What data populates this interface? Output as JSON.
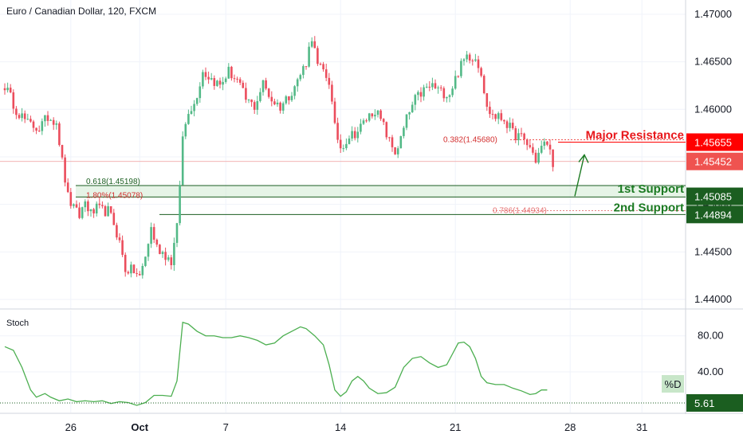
{
  "header": {
    "title": "Euro / Canadian Dollar, 120, FXCM"
  },
  "colors": {
    "up": "#26a69a",
    "down": "#ef5350",
    "up_fill": "#53b987",
    "down_fill": "#eb4d5c",
    "red_tag": "#ff0000",
    "green_tag": "#1b5e20",
    "stoch_line": "#4caf50"
  },
  "chart_data": [
    {
      "type": "candlestick",
      "title": "Euro / Canadian Dollar, 120, FXCM",
      "ylim": [
        1.439,
        1.4715
      ],
      "yticks": [
        "1.47000",
        "1.46500",
        "1.46000",
        "1.45500",
        "1.45000",
        "1.44500",
        "1.44000"
      ],
      "ytick_values": [
        1.47,
        1.465,
        1.46,
        1.455,
        1.45,
        1.445,
        1.44
      ],
      "xticks": [
        {
          "label": "26",
          "bar": 23
        },
        {
          "label": "Oct",
          "bar": 47,
          "bold": true
        },
        {
          "label": "7",
          "bar": 77
        },
        {
          "label": "14",
          "bar": 117
        },
        {
          "label": "21",
          "bar": 157
        },
        {
          "label": "28",
          "bar": 197
        },
        {
          "label": "31",
          "bar": 222
        }
      ],
      "xlim_bars": [
        0,
        225
      ],
      "anchors": [
        [
          0,
          1.4625
        ],
        [
          4,
          1.46
        ],
        [
          8,
          1.4585
        ],
        [
          12,
          1.458
        ],
        [
          15,
          1.4592
        ],
        [
          18,
          1.4588
        ],
        [
          20,
          1.4545
        ],
        [
          22,
          1.4508
        ],
        [
          24,
          1.4495
        ],
        [
          26,
          1.4488
        ],
        [
          28,
          1.4503
        ],
        [
          30,
          1.449
        ],
        [
          32,
          1.4495
        ],
        [
          34,
          1.4493
        ],
        [
          36,
          1.4493
        ],
        [
          38,
          1.448
        ],
        [
          40,
          1.446
        ],
        [
          42,
          1.4432
        ],
        [
          45,
          1.443
        ],
        [
          47,
          1.4423
        ],
        [
          49,
          1.4445
        ],
        [
          51,
          1.4475
        ],
        [
          53,
          1.4455
        ],
        [
          56,
          1.4447
        ],
        [
          58,
          1.444
        ],
        [
          60,
          1.4475
        ],
        [
          62,
          1.457
        ],
        [
          64,
          1.46
        ],
        [
          66,
          1.4605
        ],
        [
          69,
          1.464
        ],
        [
          72,
          1.4632
        ],
        [
          75,
          1.4625
        ],
        [
          78,
          1.464
        ],
        [
          81,
          1.463
        ],
        [
          84,
          1.461
        ],
        [
          87,
          1.4603
        ],
        [
          90,
          1.4627
        ],
        [
          93,
          1.461
        ],
        [
          96,
          1.4603
        ],
        [
          99,
          1.4615
        ],
        [
          102,
          1.463
        ],
        [
          105,
          1.465
        ],
        [
          107,
          1.4677
        ],
        [
          109,
          1.4645
        ],
        [
          111,
          1.464
        ],
        [
          113,
          1.463
        ],
        [
          115,
          1.458
        ],
        [
          117,
          1.456
        ],
        [
          120,
          1.4572
        ],
        [
          123,
          1.4577
        ],
        [
          126,
          1.459
        ],
        [
          129,
          1.46
        ],
        [
          132,
          1.4582
        ],
        [
          134,
          1.4566
        ],
        [
          136,
          1.4555
        ],
        [
          138,
          1.4568
        ],
        [
          140,
          1.459
        ],
        [
          143,
          1.461
        ],
        [
          146,
          1.462
        ],
        [
          149,
          1.4625
        ],
        [
          152,
          1.4618
        ],
        [
          155,
          1.4617
        ],
        [
          158,
          1.464
        ],
        [
          161,
          1.4657
        ],
        [
          164,
          1.4655
        ],
        [
          166,
          1.464
        ],
        [
          168,
          1.46
        ],
        [
          171,
          1.4592
        ],
        [
          174,
          1.459
        ],
        [
          177,
          1.4575
        ],
        [
          180,
          1.457
        ],
        [
          183,
          1.456
        ],
        [
          185,
          1.4547
        ],
        [
          187,
          1.456
        ],
        [
          189,
          1.4565
        ],
        [
          191,
          1.4545
        ]
      ],
      "levels": [
        {
          "label": "0.382(1.45680)",
          "value": 1.4568,
          "style": "fib-red"
        },
        {
          "label": "0.618(1.45198)",
          "value": 1.45198,
          "style": "fib-green"
        },
        {
          "label": "1.80%(1.45078)",
          "value": 1.45078,
          "style": "fib-red"
        },
        {
          "label": "0.786(1.44934)",
          "value": 1.44934,
          "style": "fib-pink"
        }
      ],
      "annotations": [
        {
          "text": "Major Resistance",
          "color": "red"
        },
        {
          "text": "1st Support",
          "color": "green"
        },
        {
          "text": "2nd Support",
          "color": "green"
        }
      ],
      "price_tags": [
        {
          "text": "1.45655",
          "value": 1.45655,
          "bg": "#ff0000"
        },
        {
          "text": "1.45452",
          "value": 1.45452,
          "bg": "#ef5350"
        },
        {
          "text": "1.45085",
          "value": 1.45085,
          "bg": "#1b5e20"
        },
        {
          "text": "1.44894",
          "value": 1.44894,
          "bg": "#1b5e20"
        }
      ]
    },
    {
      "type": "line",
      "title": "Stoch",
      "ylim": [
        -5,
        108
      ],
      "yticks": [
        "80.00",
        "40.00"
      ],
      "ytick_values": [
        80,
        40
      ],
      "series": [
        {
          "name": "%D",
          "points": [
            [
              0,
              68
            ],
            [
              3,
              64
            ],
            [
              6,
              45
            ],
            [
              9,
              20
            ],
            [
              11,
              12
            ],
            [
              14,
              16
            ],
            [
              16,
              12
            ],
            [
              19,
              8
            ],
            [
              22,
              10
            ],
            [
              25,
              7
            ],
            [
              28,
              8
            ],
            [
              31,
              7
            ],
            [
              34,
              8
            ],
            [
              37,
              5
            ],
            [
              40,
              7
            ],
            [
              43,
              6
            ],
            [
              46,
              3
            ],
            [
              49,
              6
            ],
            [
              52,
              14
            ],
            [
              55,
              14
            ],
            [
              58,
              13
            ],
            [
              60,
              30
            ],
            [
              62,
              95
            ],
            [
              64,
              93
            ],
            [
              67,
              85
            ],
            [
              70,
              80
            ],
            [
              73,
              80
            ],
            [
              76,
              78
            ],
            [
              79,
              78
            ],
            [
              82,
              80
            ],
            [
              85,
              78
            ],
            [
              88,
              75
            ],
            [
              91,
              70
            ],
            [
              94,
              72
            ],
            [
              97,
              80
            ],
            [
              100,
              85
            ],
            [
              103,
              90
            ],
            [
              105,
              88
            ],
            [
              108,
              80
            ],
            [
              111,
              70
            ],
            [
              113,
              48
            ],
            [
              115,
              20
            ],
            [
              117,
              13
            ],
            [
              119,
              18
            ],
            [
              121,
              30
            ],
            [
              123,
              35
            ],
            [
              125,
              30
            ],
            [
              127,
              22
            ],
            [
              130,
              16
            ],
            [
              133,
              17
            ],
            [
              136,
              23
            ],
            [
              139,
              45
            ],
            [
              142,
              55
            ],
            [
              145,
              57
            ],
            [
              148,
              50
            ],
            [
              151,
              45
            ],
            [
              154,
              48
            ],
            [
              156,
              60
            ],
            [
              158,
              72
            ],
            [
              160,
              73
            ],
            [
              162,
              68
            ],
            [
              164,
              55
            ],
            [
              166,
              35
            ],
            [
              168,
              28
            ],
            [
              171,
              26
            ],
            [
              174,
              26
            ],
            [
              177,
              22
            ],
            [
              180,
              19
            ],
            [
              183,
              15
            ],
            [
              185,
              16
            ],
            [
              187,
              20
            ],
            [
              189,
              20
            ]
          ]
        }
      ],
      "hline": {
        "value": 5.61,
        "label": "5.61"
      },
      "legend_label": "%D",
      "value_tags": [
        {
          "text": "5.61",
          "value": 5.61
        }
      ]
    }
  ]
}
